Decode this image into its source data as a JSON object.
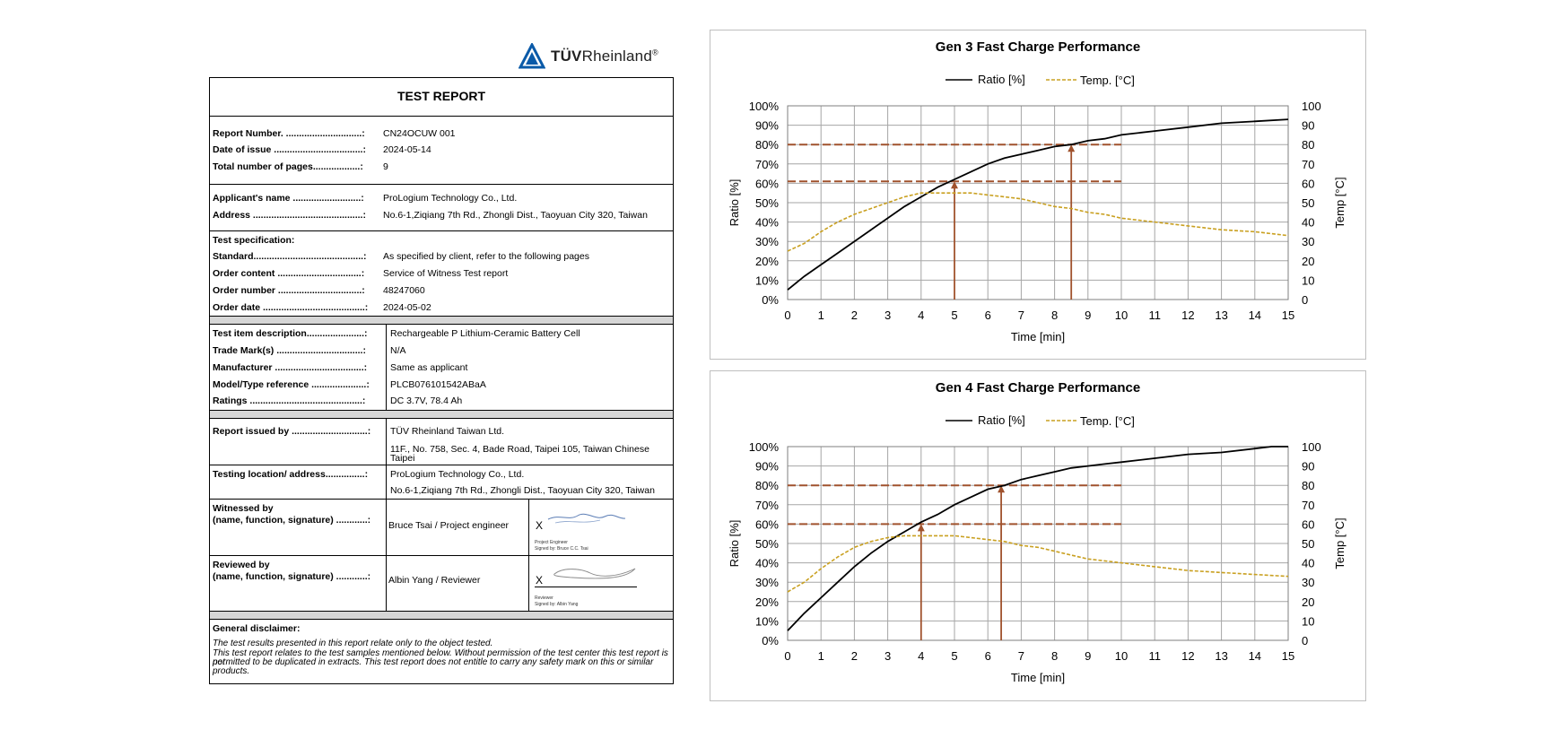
{
  "logo": {
    "name_bold": "TÜV",
    "name": "Rheinland",
    "mark": "®"
  },
  "report": {
    "title": "TEST REPORT",
    "s1": [
      {
        "k": "Report Number. .............................:",
        "v": "CN24OCUW 001"
      },
      {
        "k": "Date of issue ..................................:",
        "v": "2024-05-14"
      },
      {
        "k": "Total number of pages..................:",
        "v": "9"
      }
    ],
    "s2": [
      {
        "k": "Applicant's name ..........................:",
        "v": "ProLogium Technology Co., Ltd."
      },
      {
        "k": "Address ..........................................:",
        "v": "No.6-1,Ziqiang 7th Rd., Zhongli Dist., Taoyuan City 320, Taiwan"
      }
    ],
    "s3_header": "Test specification:",
    "s3": [
      {
        "k": "Standard..........................................:",
        "v": "As specified by client, refer to the following pages"
      },
      {
        "k": "Order content ................................:",
        "v": "Service of Witness Test report"
      },
      {
        "k": "Order number ................................:",
        "v": "48247060"
      },
      {
        "k": "Order date .......................................:",
        "v": "2024-05-02"
      }
    ],
    "s4": [
      {
        "k": "Test item description......................:",
        "v": "Rechargeable P Lithium-Ceramic Battery Cell"
      },
      {
        "k": "Trade Mark(s) .................................:",
        "v": "N/A"
      },
      {
        "k": "Manufacturer ..................................:",
        "v": "Same as applicant"
      },
      {
        "k": "Model/Type reference .....................:",
        "v": "PLCB076101542ABaA"
      },
      {
        "k": "Ratings ...........................................:",
        "v": "DC 3.7V, 78.4 Ah"
      }
    ],
    "issued_k": "Report issued by .............................:",
    "issued_v1": "TÜV Rheinland Taiwan Ltd.",
    "issued_v2": "11F., No. 758, Sec. 4, Bade Road, Taipei 105, Taiwan Chinese",
    "issued_v3": "Taipei",
    "loc_k": "Testing location/ address...............:",
    "loc_v1": "ProLogium Technology Co., Ltd.",
    "loc_v2": "No.6-1,Ziqiang 7th Rd., Zhongli Dist., Taoyuan City 320, Taiwan",
    "wit_k1": "Witnessed by",
    "wit_k2": "(name, function, signature) ............:",
    "wit_v": "Bruce Tsai / Project engineer",
    "wit_sig_role": "Project Engineer",
    "wit_sig_by": "Signed by: Bruce C.C. Tsai",
    "rev_k1": "Reviewed by",
    "rev_k2": "(name, function, signature) ............:",
    "rev_v": "Albin Yang / Reviewer",
    "rev_sig_role": "Reviewer",
    "rev_sig_by": "Signed by: Albin Yang",
    "x": "X",
    "disc_h": "General disclaimer:",
    "disc_1": "The test results presented in this report relate only to the object tested.",
    "disc_2": "This test report relates to the test samples mentioned below. Without permission of the test center this test report is not",
    "disc_3": "permitted to be duplicated in extracts. This test report does not entitle to carry any safety mark on this or similar",
    "disc_4": "products."
  },
  "chart_data": [
    {
      "type": "line",
      "title": "Gen 3  Fast Charge Performance",
      "xlabel": "Time [min]",
      "ylabel": "Ratio [%]",
      "y2label": "Temp [°C]",
      "xlim": [
        0,
        15
      ],
      "ylim": [
        0,
        100
      ],
      "y2lim": [
        0,
        100
      ],
      "xticks": [
        "0",
        "1",
        "2",
        "3",
        "4",
        "5",
        "6",
        "7",
        "8",
        "9",
        "10",
        "11",
        "12",
        "13",
        "14",
        "15"
      ],
      "yticks": [
        "0%",
        "10%",
        "20%",
        "30%",
        "40%",
        "50%",
        "60%",
        "70%",
        "80%",
        "90%",
        "100%"
      ],
      "y2ticks": [
        "0",
        "10",
        "20",
        "30",
        "40",
        "50",
        "60",
        "70",
        "80",
        "90",
        "100"
      ],
      "grid": true,
      "legend": "top-center",
      "series": [
        {
          "name": "Ratio [%]",
          "axis": "left",
          "style": "solid",
          "color": "#000000",
          "x": [
            0,
            0.5,
            1,
            1.5,
            2,
            2.5,
            3,
            3.5,
            4,
            4.5,
            5,
            5.5,
            6,
            6.5,
            7,
            7.5,
            8,
            8.5,
            9,
            9.5,
            10,
            11,
            12,
            13,
            14,
            15
          ],
          "y": [
            5,
            12,
            18,
            24,
            30,
            36,
            42,
            48,
            53,
            58,
            62,
            66,
            70,
            73,
            75,
            77,
            79,
            80,
            82,
            83,
            85,
            87,
            89,
            91,
            92,
            93
          ]
        },
        {
          "name": "Temp. [°C]",
          "axis": "right",
          "style": "dashed",
          "color": "#c9a020",
          "x": [
            0,
            0.5,
            1,
            1.5,
            2,
            2.5,
            3,
            3.5,
            4,
            4.5,
            5,
            5.5,
            6,
            6.5,
            7,
            7.5,
            8,
            8.5,
            9,
            9.5,
            10,
            11,
            12,
            13,
            14,
            15
          ],
          "y": [
            25,
            29,
            35,
            40,
            44,
            47,
            50,
            53,
            55,
            55,
            55,
            55,
            54,
            53,
            52,
            50,
            48,
            47,
            45,
            44,
            42,
            40,
            38,
            36,
            35,
            33
          ]
        }
      ],
      "hlines": [
        {
          "y": 80,
          "x_end": 10,
          "color": "#a0522d",
          "style": "dashed"
        },
        {
          "y": 61,
          "x_end": 10,
          "color": "#a0522d",
          "style": "dashed"
        }
      ],
      "arrows": [
        {
          "x": 5,
          "y_to": 61,
          "color": "#a0522d"
        },
        {
          "x": 8.5,
          "y_to": 80,
          "color": "#a0522d"
        }
      ]
    },
    {
      "type": "line",
      "title": "Gen 4 Fast Charge Performance",
      "xlabel": "Time [min]",
      "ylabel": "Ratio [%]",
      "y2label": "Temp [°C]",
      "xlim": [
        0,
        15
      ],
      "ylim": [
        0,
        100
      ],
      "y2lim": [
        0,
        100
      ],
      "xticks": [
        "0",
        "1",
        "2",
        "3",
        "4",
        "5",
        "6",
        "7",
        "8",
        "9",
        "10",
        "11",
        "12",
        "13",
        "14",
        "15"
      ],
      "yticks": [
        "0%",
        "10%",
        "20%",
        "30%",
        "40%",
        "50%",
        "60%",
        "70%",
        "80%",
        "90%",
        "100%"
      ],
      "y2ticks": [
        "0",
        "10",
        "20",
        "30",
        "40",
        "50",
        "60",
        "70",
        "80",
        "90",
        "100"
      ],
      "grid": true,
      "legend": "top-center",
      "series": [
        {
          "name": "Ratio [%]",
          "axis": "left",
          "style": "solid",
          "color": "#000000",
          "x": [
            0,
            0.5,
            1,
            1.5,
            2,
            2.5,
            3,
            3.5,
            4,
            4.5,
            5,
            5.5,
            6,
            6.5,
            7,
            7.5,
            8,
            8.5,
            9,
            9.5,
            10,
            11,
            12,
            13,
            14,
            14.5,
            15
          ],
          "y": [
            5,
            14,
            22,
            30,
            38,
            45,
            51,
            56,
            61,
            65,
            70,
            74,
            78,
            80,
            83,
            85,
            87,
            89,
            90,
            91,
            92,
            94,
            96,
            97,
            99,
            100,
            100
          ]
        },
        {
          "name": "Temp. [°C]",
          "axis": "right",
          "style": "dashed",
          "color": "#c9a020",
          "x": [
            0,
            0.5,
            1,
            1.5,
            2,
            2.5,
            3,
            3.5,
            4,
            4.5,
            5,
            5.5,
            6,
            6.5,
            7,
            7.5,
            8,
            8.5,
            9,
            9.5,
            10,
            11,
            12,
            13,
            14,
            15
          ],
          "y": [
            25,
            30,
            37,
            43,
            48,
            51,
            53,
            54,
            54,
            54,
            54,
            53,
            52,
            51,
            49,
            48,
            46,
            44,
            42,
            41,
            40,
            38,
            36,
            35,
            34,
            33
          ]
        }
      ],
      "hlines": [
        {
          "y": 80,
          "x_end": 10,
          "color": "#a0522d",
          "style": "dashed"
        },
        {
          "y": 60,
          "x_end": 10,
          "color": "#a0522d",
          "style": "dashed"
        }
      ],
      "arrows": [
        {
          "x": 4,
          "y_to": 60,
          "color": "#a0522d"
        },
        {
          "x": 6.4,
          "y_to": 80,
          "color": "#a0522d"
        }
      ]
    }
  ]
}
